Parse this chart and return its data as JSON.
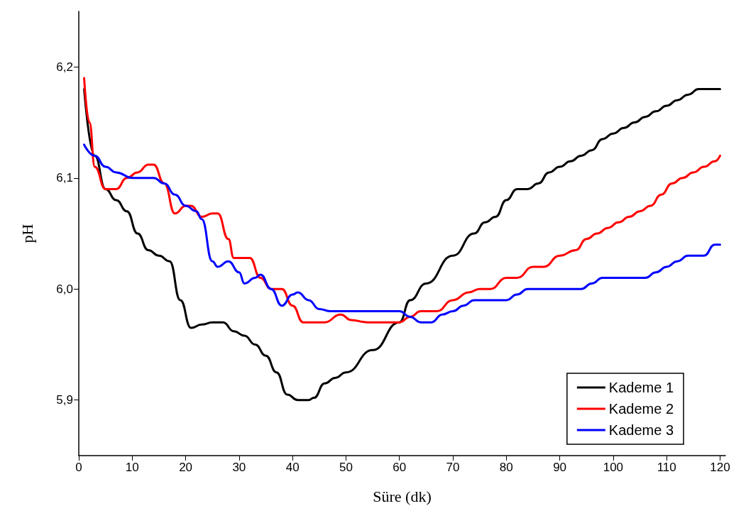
{
  "chart_data": {
    "type": "line",
    "xlabel": "Süre (dk)",
    "ylabel": "pH",
    "xlim": [
      0,
      121
    ],
    "xticks": [
      0,
      10,
      20,
      30,
      40,
      50,
      60,
      70,
      80,
      90,
      100,
      110,
      120
    ],
    "ylim": [
      5.85,
      6.25
    ],
    "yticks": [
      {
        "value": 5.9,
        "label": "5,9"
      },
      {
        "value": 6.0,
        "label": "6,0"
      },
      {
        "value": 6.1,
        "label": "6,1"
      },
      {
        "value": 6.2,
        "label": "6,2"
      }
    ],
    "grid": false,
    "legend": "bottom right",
    "marker": "none",
    "line_style": "solid",
    "series": [
      {
        "name": "Kademe 1",
        "color": "#000000",
        "x": [
          1,
          3,
          5,
          7,
          9,
          11,
          13,
          15,
          17,
          19,
          21,
          23,
          25,
          27,
          29,
          31,
          33,
          35,
          37,
          39,
          41,
          43,
          44,
          46,
          48,
          50,
          55,
          60,
          62,
          65,
          70,
          74,
          76,
          78,
          80,
          82,
          84,
          86,
          88,
          90,
          92,
          94,
          96,
          98,
          100,
          102,
          104,
          106,
          108,
          110,
          112,
          114,
          116,
          120
        ],
        "values": [
          6.18,
          6.12,
          6.09,
          6.08,
          6.07,
          6.05,
          6.035,
          6.03,
          6.025,
          5.99,
          5.965,
          5.968,
          5.97,
          5.97,
          5.962,
          5.958,
          5.95,
          5.94,
          5.925,
          5.905,
          5.9,
          5.9,
          5.902,
          5.915,
          5.92,
          5.925,
          5.945,
          5.97,
          5.99,
          6.005,
          6.03,
          6.05,
          6.06,
          6.065,
          6.08,
          6.09,
          6.09,
          6.095,
          6.105,
          6.11,
          6.115,
          6.12,
          6.125,
          6.135,
          6.14,
          6.145,
          6.15,
          6.155,
          6.16,
          6.165,
          6.17,
          6.175,
          6.18,
          6.18
        ]
      },
      {
        "name": "Kademe 2",
        "color": "#ff0000",
        "x": [
          1,
          2,
          3,
          5,
          7,
          9,
          11,
          13,
          14,
          16,
          18,
          20,
          21,
          23,
          25,
          26,
          28,
          29,
          31,
          32,
          34,
          36,
          38,
          40,
          42,
          46,
          49,
          51,
          54,
          60,
          62,
          64,
          67,
          70,
          73,
          75,
          77,
          80,
          82,
          85,
          87,
          90,
          93,
          95,
          97,
          99,
          101,
          103,
          105,
          107,
          109,
          111,
          113,
          115,
          117,
          119,
          120
        ],
        "values": [
          6.19,
          6.15,
          6.11,
          6.09,
          6.09,
          6.1,
          6.105,
          6.112,
          6.112,
          6.095,
          6.068,
          6.075,
          6.075,
          6.065,
          6.068,
          6.068,
          6.045,
          6.028,
          6.028,
          6.028,
          6.01,
          6.0,
          6.0,
          5.985,
          5.97,
          5.97,
          5.977,
          5.972,
          5.97,
          5.97,
          5.975,
          5.98,
          5.98,
          5.99,
          5.997,
          6.0,
          6.0,
          6.01,
          6.01,
          6.02,
          6.02,
          6.03,
          6.035,
          6.045,
          6.05,
          6.055,
          6.06,
          6.065,
          6.07,
          6.075,
          6.085,
          6.095,
          6.1,
          6.105,
          6.11,
          6.115,
          6.12
        ]
      },
      {
        "name": "Kademe 3",
        "color": "#0000ff",
        "x": [
          1,
          3,
          5,
          7,
          10,
          14,
          16,
          18,
          20,
          22,
          23,
          25,
          26,
          28,
          30,
          31,
          33,
          34,
          36,
          38,
          40,
          41,
          43,
          45,
          47,
          60,
          62,
          64,
          66,
          68,
          70,
          72,
          74,
          80,
          82,
          84,
          94,
          96,
          98,
          106,
          108,
          110,
          112,
          114,
          117,
          119,
          120
        ],
        "values": [
          6.13,
          6.12,
          6.11,
          6.105,
          6.1,
          6.1,
          6.095,
          6.085,
          6.075,
          6.07,
          6.063,
          6.025,
          6.02,
          6.025,
          6.015,
          6.005,
          6.01,
          6.013,
          6.0,
          5.985,
          5.995,
          5.997,
          5.99,
          5.982,
          5.98,
          5.98,
          5.975,
          5.97,
          5.97,
          5.977,
          5.98,
          5.985,
          5.99,
          5.99,
          5.995,
          6.0,
          6.0,
          6.005,
          6.01,
          6.01,
          6.015,
          6.02,
          6.025,
          6.03,
          6.03,
          6.04,
          6.04
        ]
      }
    ]
  }
}
